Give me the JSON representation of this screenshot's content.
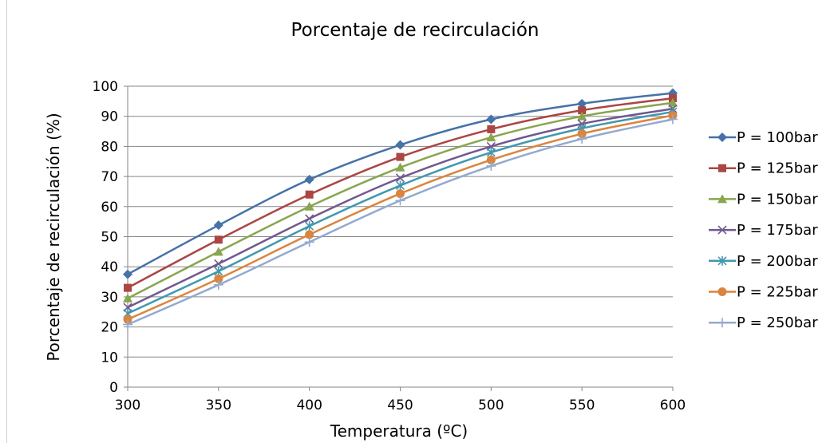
{
  "chart_data": {
    "type": "line",
    "title": "Porcentaje de recirculación",
    "xlabel": "Temperatura (ºC)",
    "ylabel": "Porcentaje de recirculación (%)",
    "x": [
      300,
      350,
      400,
      450,
      500,
      550,
      600
    ],
    "xlim": [
      300,
      600
    ],
    "ylim": [
      0,
      100
    ],
    "xticks": [
      "300",
      "350",
      "400",
      "450",
      "500",
      "550",
      "600"
    ],
    "yticks": [
      "0",
      "10",
      "20",
      "30",
      "40",
      "50",
      "60",
      "70",
      "80",
      "90",
      "100"
    ],
    "grid": true,
    "legend": "right",
    "series": [
      {
        "name": "P = 100bar",
        "color": "#4572A7",
        "marker": "diamond",
        "values": [
          37.5,
          53.8,
          69.0,
          80.5,
          89.0,
          94.2,
          97.7
        ]
      },
      {
        "name": "P = 125bar",
        "color": "#AA4643",
        "marker": "square",
        "values": [
          33.0,
          49.0,
          64.0,
          76.5,
          85.7,
          92.0,
          96.0
        ]
      },
      {
        "name": "P = 150bar",
        "color": "#89A54E",
        "marker": "triangle",
        "values": [
          29.5,
          45.0,
          60.0,
          73.0,
          83.0,
          90.0,
          94.5
        ]
      },
      {
        "name": "P = 175bar",
        "color": "#71588F",
        "marker": "x",
        "values": [
          26.5,
          41.0,
          56.0,
          69.5,
          80.0,
          87.5,
          92.5
        ]
      },
      {
        "name": "P = 200bar",
        "color": "#4198AF",
        "marker": "star",
        "values": [
          24.5,
          38.5,
          53.5,
          67.0,
          78.0,
          86.0,
          91.5
        ]
      },
      {
        "name": "P = 225bar",
        "color": "#DB843D",
        "marker": "circle",
        "values": [
          22.5,
          36.0,
          50.7,
          64.3,
          75.5,
          84.2,
          90.3
        ]
      },
      {
        "name": "P = 250bar",
        "color": "#93A9CF",
        "marker": "plus",
        "values": [
          20.8,
          34.0,
          48.2,
          62.0,
          73.5,
          82.5,
          89.0
        ]
      }
    ]
  }
}
